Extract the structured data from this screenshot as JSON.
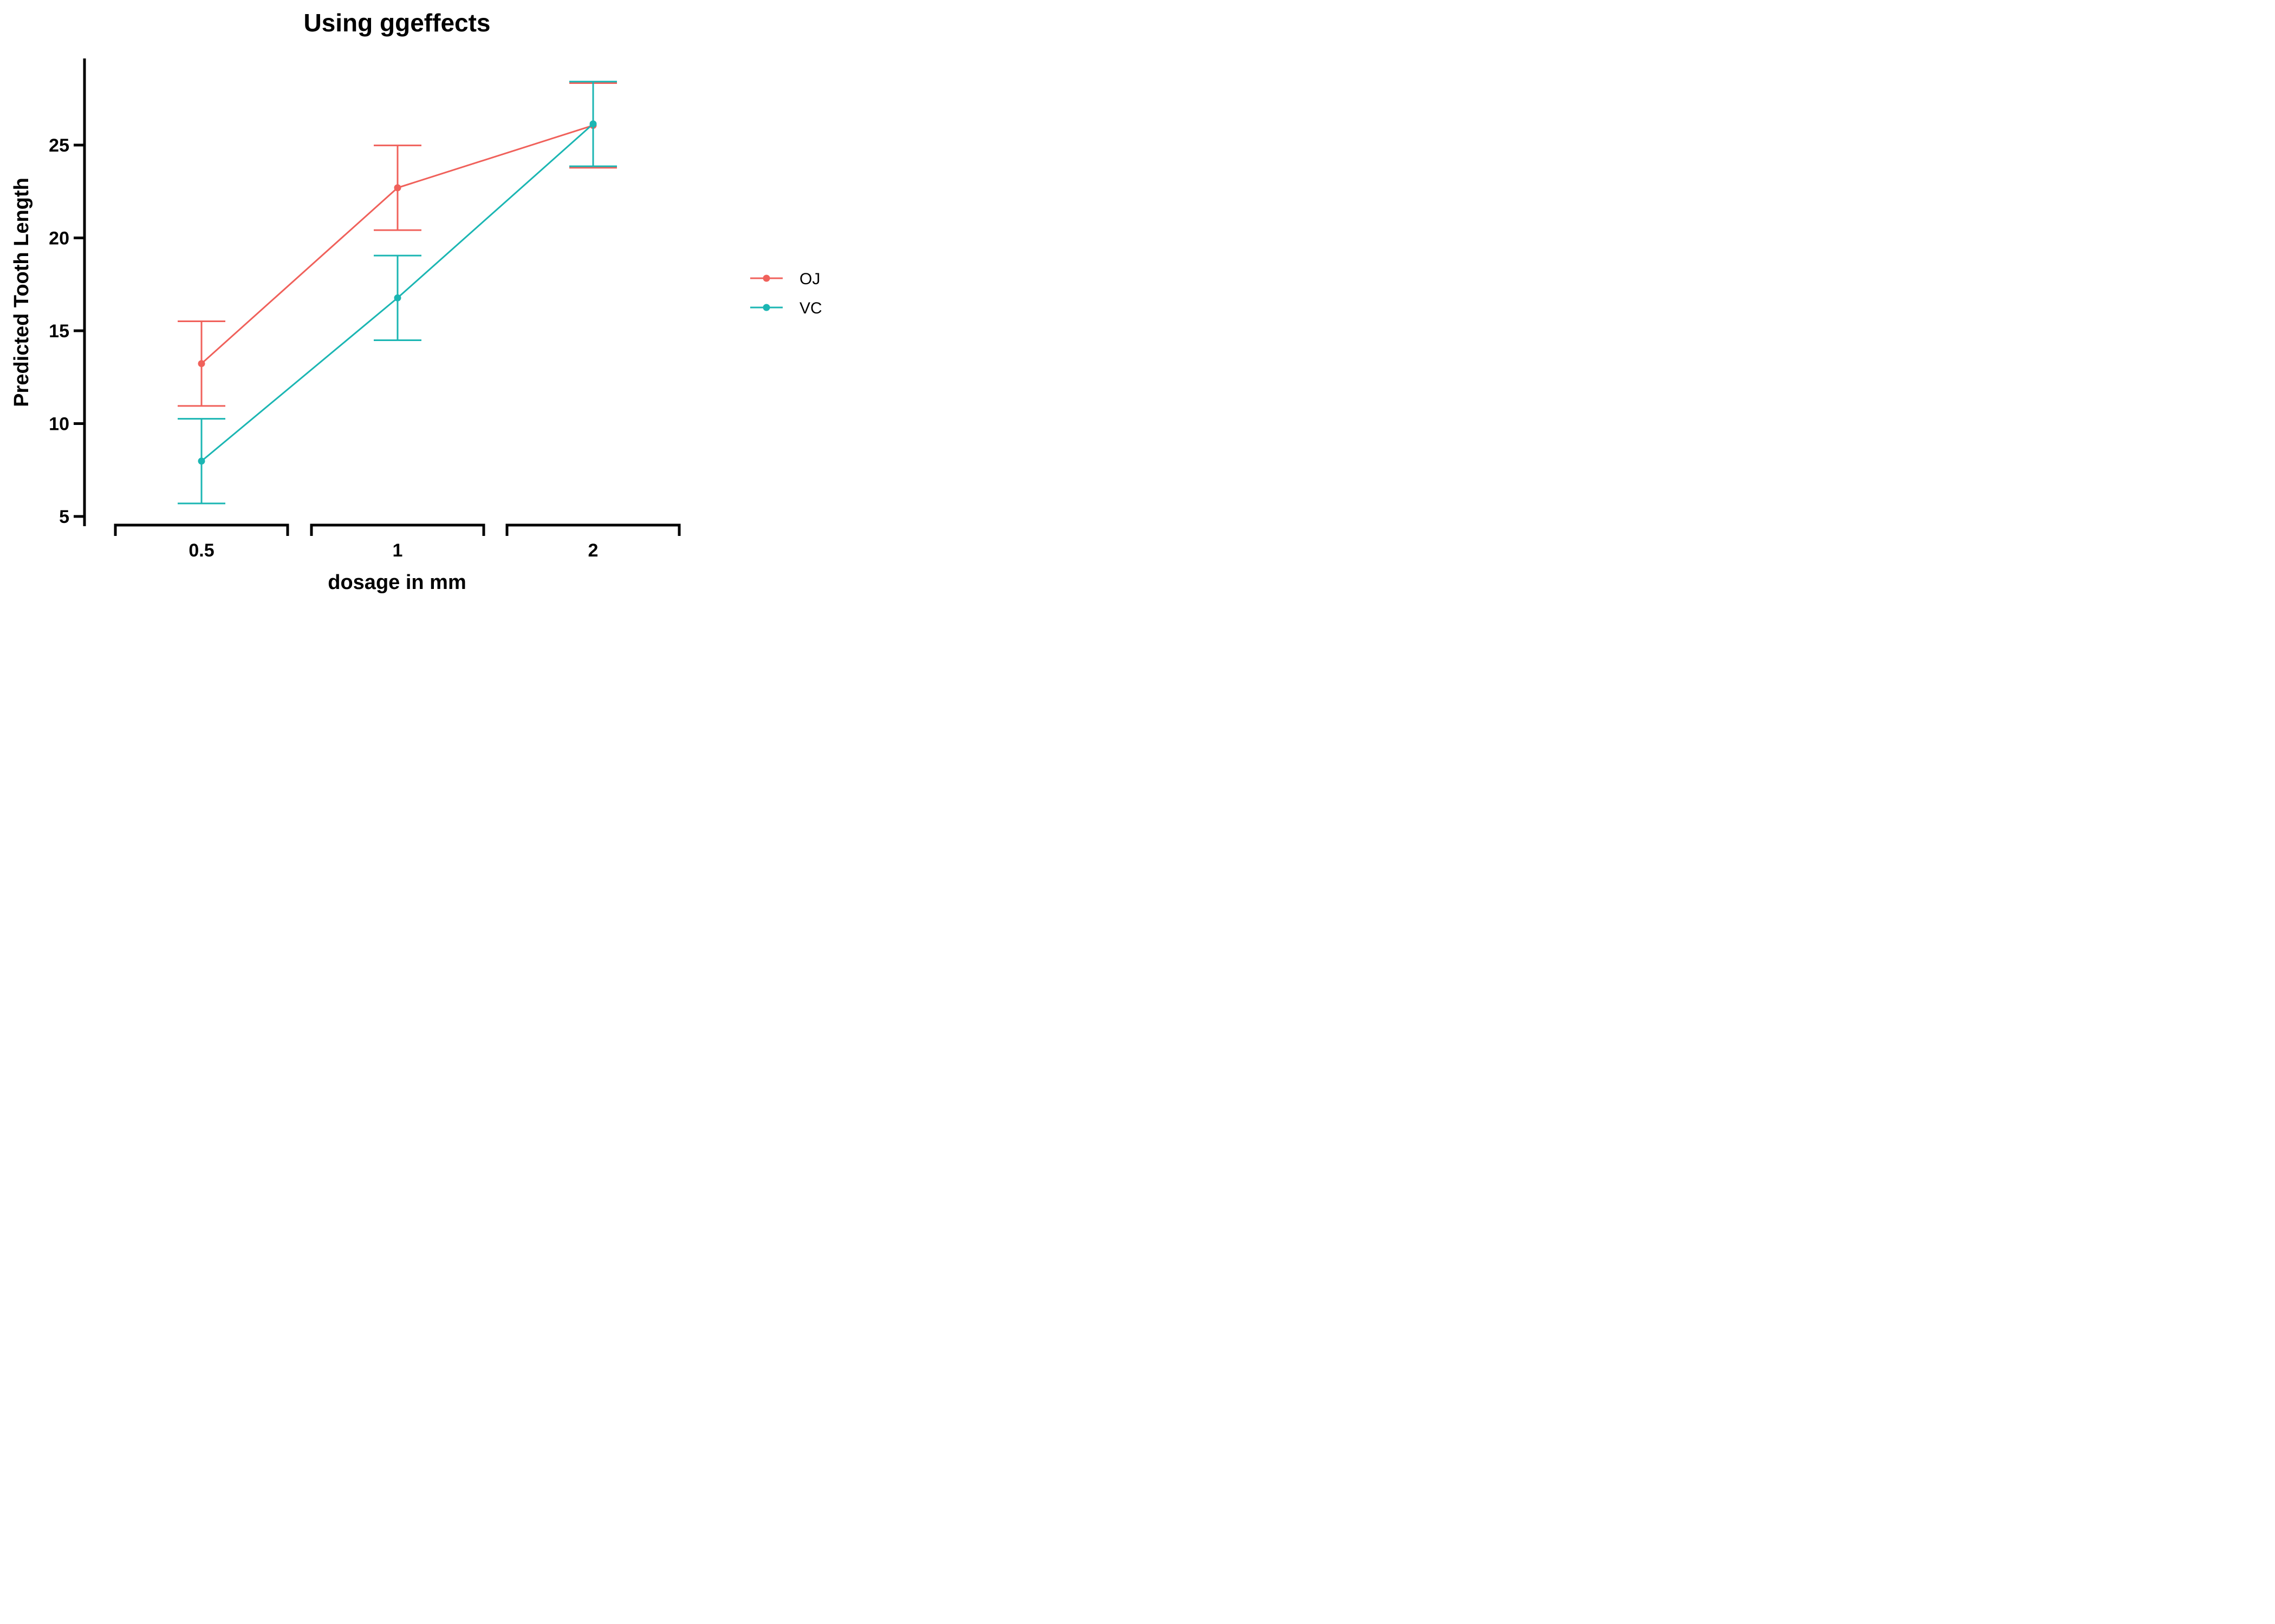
{
  "chart_data": {
    "type": "line",
    "title": "Using ggeffects",
    "xlabel": "dosage in mm",
    "ylabel": "Predicted Tooth Length",
    "categories": [
      "0.5",
      "1",
      "2"
    ],
    "yticks": [
      5,
      10,
      15,
      20,
      25
    ],
    "ylim": [
      5,
      29.5
    ],
    "series": [
      {
        "name": "OJ",
        "color": "#F0615B",
        "values": [
          13.23,
          22.7,
          26.06
        ],
        "ci_low": [
          10.95,
          20.42,
          23.78
        ],
        "ci_high": [
          15.51,
          24.98,
          28.34
        ]
      },
      {
        "name": "VC",
        "color": "#1BB6B3",
        "values": [
          7.98,
          16.77,
          26.14
        ],
        "ci_low": [
          5.7,
          14.49,
          23.86
        ],
        "ci_high": [
          10.26,
          19.05,
          28.42
        ]
      }
    ],
    "legend": {
      "position": "right"
    }
  }
}
